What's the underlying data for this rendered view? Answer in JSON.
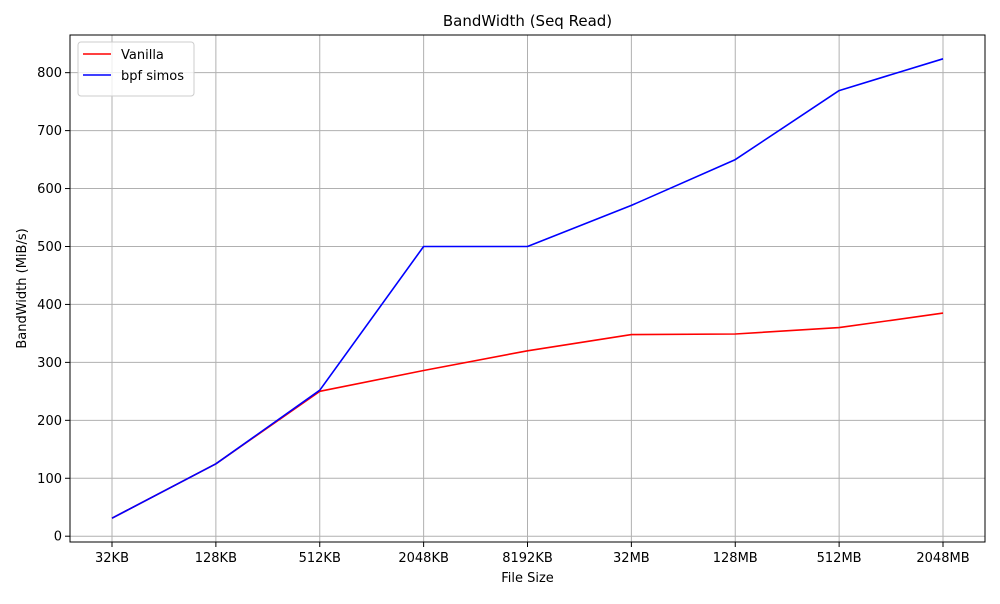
{
  "chart_data": {
    "type": "line",
    "title": "BandWidth (Seq Read)",
    "xlabel": "File Size",
    "ylabel": "BandWidth (MiB/s)",
    "categories": [
      "32KB",
      "128KB",
      "512KB",
      "2048KB",
      "8192KB",
      "32MB",
      "128MB",
      "512MB",
      "2048MB"
    ],
    "ylim": [
      -10,
      865
    ],
    "yticks": [
      0,
      100,
      200,
      300,
      400,
      500,
      600,
      700,
      800
    ],
    "grid": true,
    "legend_position": "top-left",
    "series": [
      {
        "name": "Vanilla",
        "color": "#ff0000",
        "values": [
          31,
          125,
          250,
          286,
          320,
          348,
          349,
          360,
          385
        ]
      },
      {
        "name": "bpf simos",
        "color": "#0000ff",
        "values": [
          31,
          125,
          252,
          500,
          500,
          571,
          650,
          769,
          824
        ]
      }
    ]
  }
}
